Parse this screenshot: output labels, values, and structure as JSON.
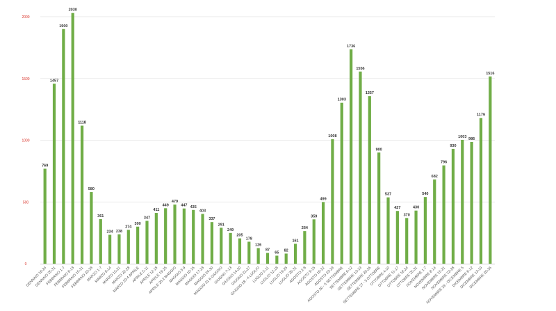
{
  "chart_data": {
    "type": "bar",
    "color": "#70ad47",
    "tick_color": "#d9332a",
    "ylim": [
      0,
      2000
    ],
    "yticks": [
      0,
      500,
      1000,
      1500,
      2000
    ],
    "grid": true,
    "categories": [
      "GENNAIO 18-24",
      "GENNAIO 25-31",
      "FEBBRAIO 1-7",
      "FEBBRAIO 8-13",
      "FEBBRAIO 15-21",
      "FEBBRAIO 22-28",
      "MARZO 1-7",
      "MARZO 8-14",
      "MARZO 15-21",
      "MARZO 22-28",
      "MARZO 29-4 APRILE",
      "APRILE 5-11",
      "APRILE 12-18",
      "APRILE 19-25",
      "APRILE 26-2 MAGGIO",
      "MAGGIO 3-9",
      "MAGGIO 10-16",
      "MAGGIO 17-23",
      "MAGGIO 24-30",
      "MAGGIO 31-6 GIUGNO",
      "GIUGNO 7-13",
      "GIUGNO 14-20",
      "GIUGNO 21-27",
      "GIUGNO 28 - 4 LUGLIO",
      "LUGLIO 5-11",
      "LUGLIO 12-18",
      "LUGLIO 19-25",
      "LUGLIO 26-31",
      "AGOSTO 2-8",
      "AGOSTO 9-15",
      "AGOSTO 16-22",
      "AGOSTO 23-29",
      "AGOSTO 30 - 5 SETTEMBRE",
      "SETTEMBRE 6-12",
      "SETTEMBRE 13-19",
      "SETTEMBRE 20-26",
      "SETTEMBRE 27 - 3 OTTOBRE",
      "OTTOBRE 4-10",
      "OTTOBRE 11-17",
      "OTTOBRE 18-24",
      "OTTOBRE 25-31",
      "NOVEMBRE 1-7",
      "NOVEMBRE 8-14",
      "NOVEMBRE 15-21",
      "NOVEMBRE 22-28",
      "NOVEMBRE 29 - DICEMBRE 5",
      "DICEMBRE 6-12",
      "DICEMBRE 13-19",
      "DICEMBRE 20-26"
    ],
    "values": [
      769,
      1457,
      1900,
      2030,
      1118,
      580,
      361,
      234,
      238,
      274,
      300,
      347,
      411,
      449,
      479,
      447,
      435,
      403,
      337,
      291,
      249,
      205,
      178,
      126,
      87,
      65,
      82,
      161,
      264,
      359,
      499,
      1008,
      1303,
      1736,
      1556,
      1357,
      900,
      537,
      427,
      370,
      430,
      540,
      682,
      796,
      930,
      1003,
      986,
      1179,
      1516
    ]
  }
}
